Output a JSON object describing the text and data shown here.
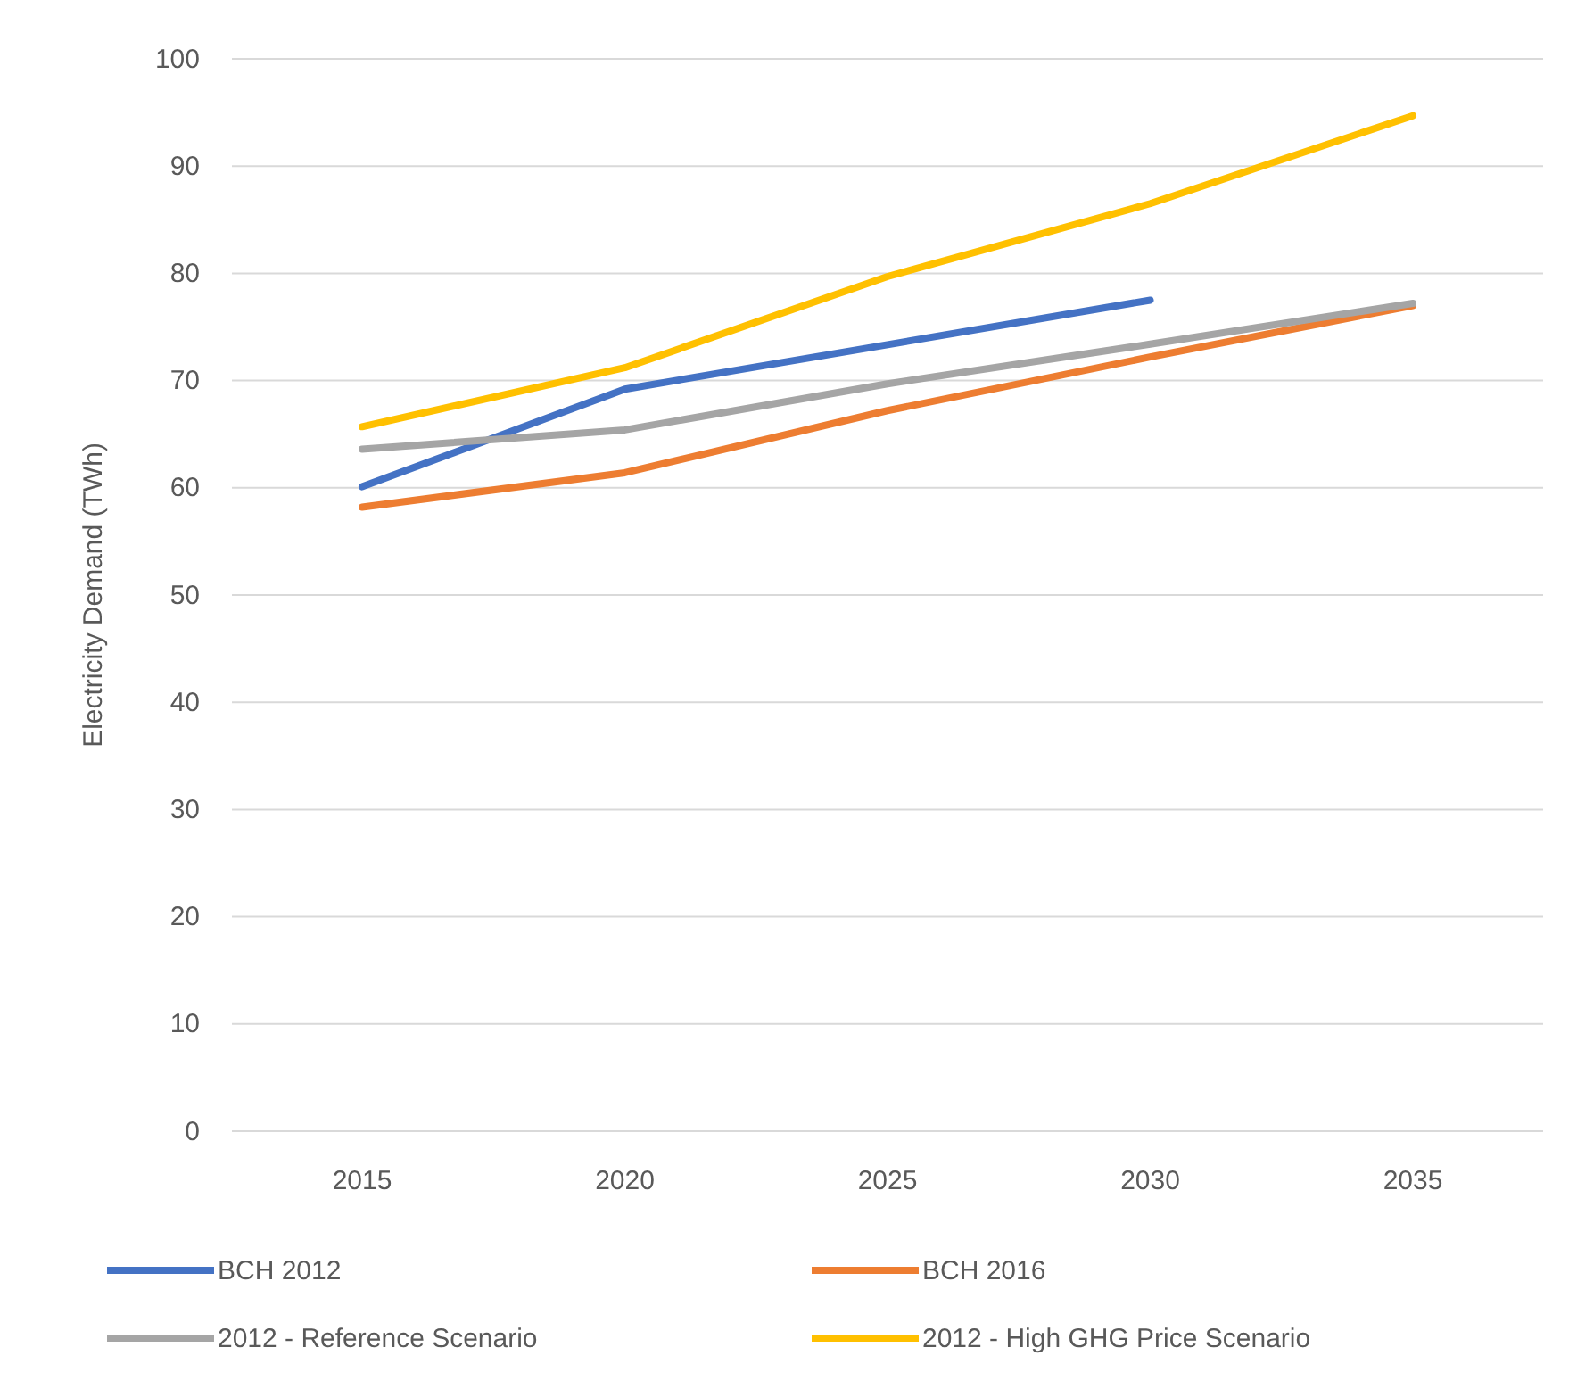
{
  "chart_data": {
    "type": "line",
    "ylabel": "Electricity Demand (TWh)",
    "categories": [
      "2015",
      "2020",
      "2025",
      "2030",
      "2035"
    ],
    "series": [
      {
        "name": "BCH 2012",
        "color": "#4472c4",
        "values": [
          60.1,
          69.2,
          null,
          77.5,
          null
        ]
      },
      {
        "name": "BCH 2016",
        "color": "#ed7d31",
        "values": [
          58.2,
          61.4,
          67.2,
          72.2,
          77.0
        ]
      },
      {
        "name": "2012 - Reference Scenario",
        "color": "#a5a5a5",
        "values": [
          63.6,
          65.4,
          69.7,
          73.4,
          77.2
        ]
      },
      {
        "name": "2012 - High GHG Price Scenario",
        "color": "#ffc000",
        "values": [
          65.7,
          71.2,
          79.7,
          86.5,
          94.7
        ]
      }
    ],
    "ylim": [
      0,
      100
    ],
    "yticks": [
      0,
      10,
      20,
      30,
      40,
      50,
      60,
      70,
      80,
      90,
      100
    ],
    "grid": "y",
    "legend": "bottom",
    "marker": "none",
    "line_style": "solid"
  }
}
